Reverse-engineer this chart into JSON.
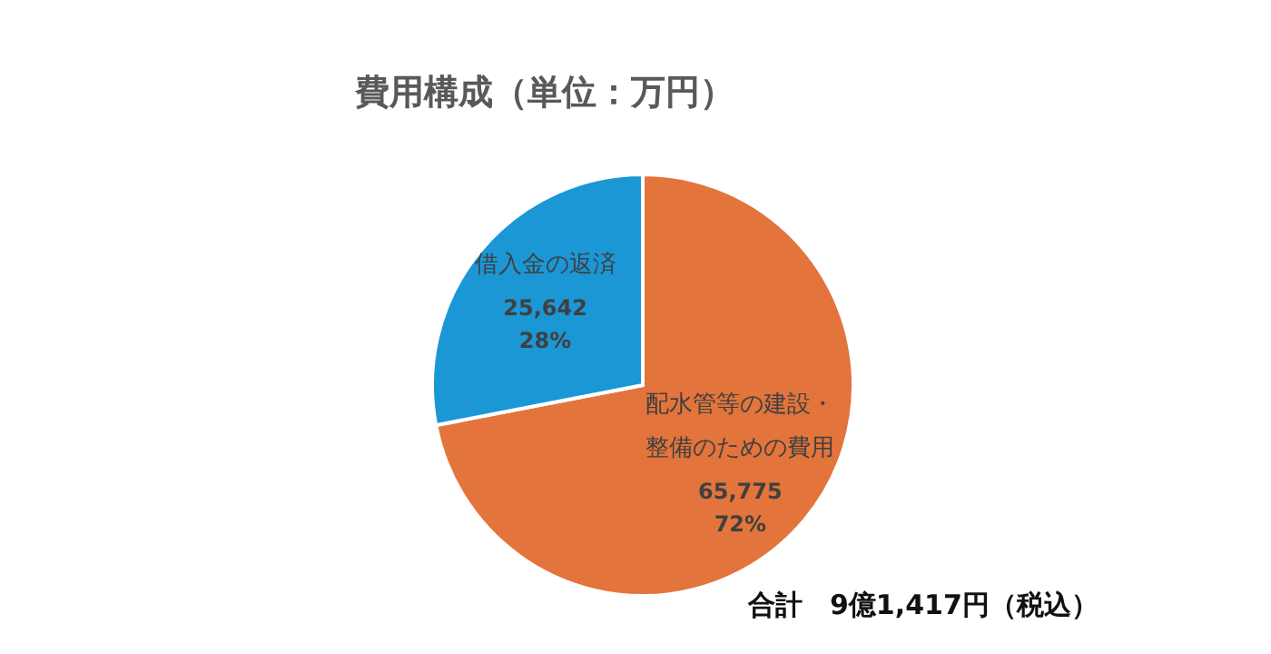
{
  "chart_data": {
    "type": "pie",
    "title": "費用構成（単位：万円）",
    "categories": [
      "配水管等の建設・整備のための費用",
      "借入金の返済"
    ],
    "values": [
      65775,
      25642
    ],
    "colors": [
      "#e2743c",
      "#1b97d6"
    ],
    "value_labels": [
      "65,775\n72%",
      "25,642\n28%"
    ],
    "annotations": [
      "合計　9億1,417円（税込）"
    ],
    "legend": false
  }
}
